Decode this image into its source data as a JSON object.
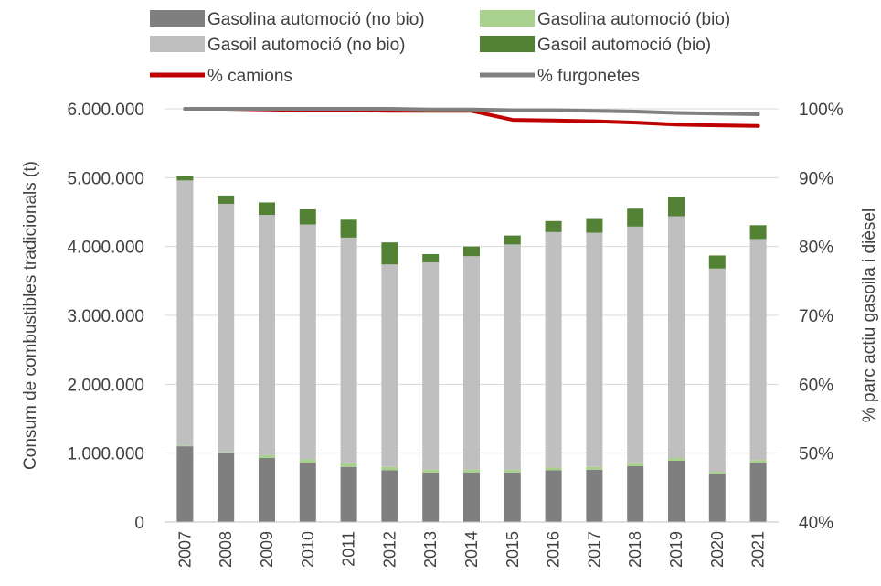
{
  "chart_data": {
    "type": "bar",
    "stacked": true,
    "categories": [
      "2007",
      "2008",
      "2009",
      "2010",
      "2011",
      "2012",
      "2013",
      "2014",
      "2015",
      "2016",
      "2017",
      "2018",
      "2019",
      "2020",
      "2021"
    ],
    "ylabel_left": "Consum de combustibles tradicionals (t)",
    "ylabel_right": "% parc actiu gasoila i dièsel",
    "y_left_range": [
      0,
      6000000
    ],
    "y_left_ticks": [
      "0",
      "1.000.000",
      "2.000.000",
      "3.000.000",
      "4.000.000",
      "5.000.000",
      "6.000.000"
    ],
    "y_right_range": [
      40,
      100
    ],
    "y_right_ticks": [
      "40%",
      "50%",
      "60%",
      "70%",
      "80%",
      "90%",
      "100%"
    ],
    "grid": "horizontal",
    "legend_position": "top",
    "series": [
      {
        "name": "Gasolina automoció (no bio)",
        "kind": "bar",
        "axis": "left",
        "color": "#7f7f7f",
        "values": [
          1100000,
          1010000,
          930000,
          860000,
          800000,
          750000,
          720000,
          720000,
          720000,
          750000,
          760000,
          810000,
          890000,
          700000,
          860000
        ]
      },
      {
        "name": "Gasolina automoció (bio)",
        "kind": "bar",
        "axis": "left",
        "color": "#a9d18e",
        "values": [
          10000,
          10000,
          40000,
          50000,
          50000,
          50000,
          40000,
          40000,
          40000,
          40000,
          40000,
          40000,
          40000,
          30000,
          40000
        ]
      },
      {
        "name": "Gasoil automoció (no bio)",
        "kind": "bar",
        "axis": "left",
        "color": "#bfbfbf",
        "values": [
          3850000,
          3600000,
          3490000,
          3410000,
          3280000,
          2940000,
          3010000,
          3100000,
          3270000,
          3420000,
          3400000,
          3440000,
          3510000,
          2950000,
          3210000
        ]
      },
      {
        "name": "Gasoil automoció (bio)",
        "kind": "bar",
        "axis": "left",
        "color": "#548235",
        "values": [
          70000,
          120000,
          180000,
          220000,
          260000,
          320000,
          120000,
          140000,
          130000,
          160000,
          200000,
          260000,
          280000,
          190000,
          200000
        ]
      },
      {
        "name": "% camions",
        "kind": "line",
        "axis": "right",
        "color": "#c00000",
        "values": [
          100,
          100,
          99.9,
          99.8,
          99.8,
          99.7,
          99.7,
          99.7,
          98.4,
          98.3,
          98.2,
          98.0,
          97.7,
          97.6,
          97.5
        ]
      },
      {
        "name": "% furgonetes",
        "kind": "line",
        "axis": "right",
        "color": "#808080",
        "values": [
          100,
          100,
          100,
          100,
          100,
          100,
          99.9,
          99.9,
          99.8,
          99.8,
          99.7,
          99.6,
          99.4,
          99.3,
          99.2
        ]
      }
    ]
  }
}
